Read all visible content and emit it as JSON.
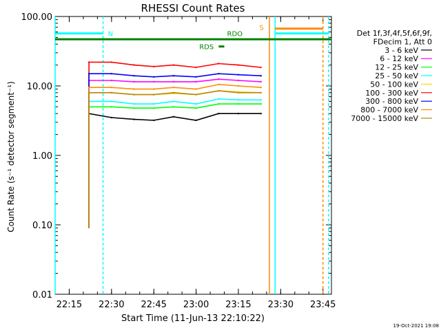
{
  "chart_data": {
    "type": "line",
    "title": "RHESSI Count Rates",
    "xlabel": "Start Time (11-Jun-13 22:10:22)",
    "ylabel": "Count Rate (s⁻¹ detector segment⁻¹)",
    "x_scale": "time",
    "y_scale": "log",
    "xlim": [
      "22:10",
      "23:48"
    ],
    "ylim": [
      0.01,
      100
    ],
    "x_ticks": [
      "22:15",
      "22:30",
      "22:45",
      "23:00",
      "23:15",
      "23:30",
      "23:45"
    ],
    "y_ticks": [
      "0.01",
      "0.10",
      "1.00",
      "10.00",
      "100.00"
    ],
    "legend": {
      "position": "right",
      "header": [
        "Det 1f,3f,4f,5f,6f,9f,",
        "FDecim 1, Att 0"
      ]
    },
    "series": [
      {
        "name": "3 - 6 keV",
        "color": "#000000",
        "x": [
          "22:22",
          "22:30",
          "22:38",
          "22:45",
          "22:52",
          "23:00",
          "23:08",
          "23:15",
          "23:23"
        ],
        "values": [
          4.0,
          3.5,
          3.3,
          3.2,
          3.6,
          3.2,
          4.0,
          4.0,
          4.0
        ]
      },
      {
        "name": "6 - 12 keV",
        "color": "#ff00ff",
        "x": [
          "22:22",
          "22:30",
          "22:38",
          "22:45",
          "22:52",
          "23:00",
          "23:08",
          "23:15",
          "23:23"
        ],
        "values": [
          12.0,
          12.0,
          11.5,
          11.5,
          11.5,
          11.5,
          12.5,
          12.0,
          11.5
        ]
      },
      {
        "name": "12 - 25 keV",
        "color": "#00ff00",
        "x": [
          "22:22",
          "22:30",
          "22:38",
          "22:45",
          "22:52",
          "23:00",
          "23:08",
          "23:15",
          "23:23"
        ],
        "values": [
          5.0,
          5.0,
          4.8,
          4.8,
          5.0,
          4.8,
          5.5,
          5.5,
          5.5
        ]
      },
      {
        "name": "25 - 50 keV",
        "color": "#00ffff",
        "x": [
          "22:22",
          "22:30",
          "22:38",
          "22:45",
          "22:52",
          "23:00",
          "23:08",
          "23:15",
          "23:23"
        ],
        "values": [
          6.0,
          6.0,
          5.5,
          5.5,
          6.0,
          5.5,
          6.5,
          6.3,
          6.3
        ]
      },
      {
        "name": "50 - 100 keV",
        "color": "#ffd700",
        "x": [
          "22:22",
          "22:30",
          "22:38",
          "22:45",
          "22:52",
          "23:00",
          "23:08",
          "23:15",
          "23:23"
        ],
        "values": [
          8.0,
          8.0,
          7.5,
          7.5,
          7.8,
          7.5,
          8.5,
          8.2,
          8.0
        ]
      },
      {
        "name": "100 - 300 keV",
        "color": "#ff0000",
        "x": [
          "22:22",
          "22:30",
          "22:38",
          "22:45",
          "22:52",
          "23:00",
          "23:08",
          "23:15",
          "23:23"
        ],
        "values": [
          22.0,
          22.0,
          20.0,
          19.0,
          20.0,
          18.5,
          21.0,
          20.0,
          18.5
        ]
      },
      {
        "name": "300 - 800 keV",
        "color": "#0000ff",
        "x": [
          "22:22",
          "22:30",
          "22:38",
          "22:45",
          "22:52",
          "23:00",
          "23:08",
          "23:15",
          "23:23"
        ],
        "values": [
          15.0,
          15.0,
          14.0,
          13.5,
          14.0,
          13.5,
          15.0,
          14.5,
          14.0
        ]
      },
      {
        "name": "800 - 7000 keV",
        "color": "#ff8c00",
        "x": [
          "22:22",
          "22:30",
          "22:38",
          "22:45",
          "22:52",
          "23:00",
          "23:08",
          "23:15",
          "23:23"
        ],
        "values": [
          9.5,
          9.5,
          9.0,
          9.0,
          9.5,
          9.0,
          10.5,
          10.0,
          9.5
        ]
      },
      {
        "name": "7000 - 15000 keV",
        "color": "#b8860b",
        "x": [
          "22:22",
          "22:30",
          "22:38",
          "22:45",
          "22:52",
          "23:00",
          "23:08",
          "23:15",
          "23:23"
        ],
        "values": [
          8.0,
          8.0,
          7.5,
          7.5,
          8.0,
          7.5,
          8.5,
          8.0,
          8.0
        ]
      }
    ],
    "annotations": [
      {
        "label": "N",
        "color": "#00ffff"
      },
      {
        "label": "RDO",
        "color": "#008000"
      },
      {
        "label": "RDS",
        "color": "#008000"
      },
      {
        "label": "S",
        "color": "#ff8c00"
      }
    ],
    "timestamp": "19-Oct-2021 19:08"
  }
}
